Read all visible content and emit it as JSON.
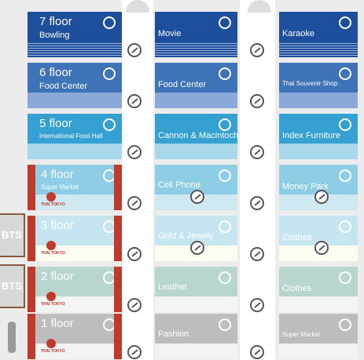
{
  "floors": [
    {
      "floor": "7 floor",
      "left": "Bowling",
      "middle": "Movie",
      "right": "Karaoke"
    },
    {
      "floor": "6 floor",
      "left": "Food Center",
      "middle": "Food Center",
      "right": "Thai Souvenir Shop"
    },
    {
      "floor": "5 floor",
      "left": "International Food Hall",
      "middle": "Cannon & Macintoch",
      "right": "Index Furniture"
    },
    {
      "floor": "4 floor",
      "left": "Super Market",
      "middle": "Cell Phone",
      "right": "Money Park",
      "logo": "THAI TOKYO"
    },
    {
      "floor": "3 floor",
      "middle": "Gold & Jewely",
      "right": "Clothes",
      "logo": "THAI TOKYO",
      "side": "BTS"
    },
    {
      "floor": "2 floor",
      "middle": "Leather",
      "right": "Clothes",
      "logo": "THAI TOKYO",
      "side": "BTS"
    },
    {
      "floor": "1 floor",
      "middle": "Fashion",
      "right": "Super Market",
      "logo": "THAI TOKYO"
    }
  ]
}
